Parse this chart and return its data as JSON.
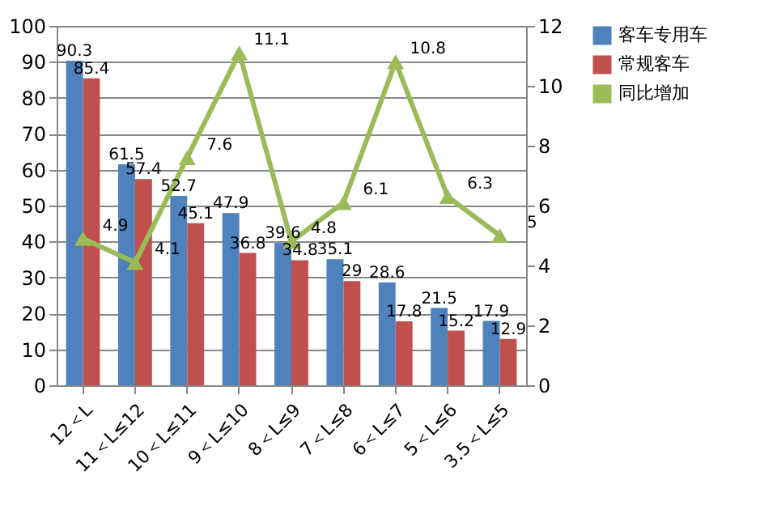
{
  "chart_data": {
    "type": "bar",
    "categories": [
      "12＜L",
      "11＜L≤12",
      "10＜L≤11",
      "9＜L≤10",
      "8＜L≤9",
      "7＜L≤8",
      "6＜L≤7",
      "5＜L≤6",
      "3.5＜L≤5"
    ],
    "series": [
      {
        "name": "客车专用车",
        "color": "#4f81bd",
        "values": [
          90.3,
          61.5,
          52.7,
          47.9,
          39.6,
          35.1,
          28.6,
          21.5,
          17.9
        ]
      },
      {
        "name": "常规客车",
        "color": "#c0504d",
        "values": [
          85.4,
          57.4,
          45.1,
          36.8,
          34.8,
          29,
          17.8,
          15.2,
          12.9
        ]
      },
      {
        "name": "同比增加",
        "color": "#9bbb59",
        "type": "line",
        "axis": "y2",
        "marker": "triangle",
        "values": [
          4.9,
          4.1,
          7.6,
          11.1,
          4.8,
          6.1,
          10.8,
          6.3,
          5
        ]
      }
    ],
    "ylim": [
      0,
      100
    ],
    "yticks": [
      0,
      10,
      20,
      30,
      40,
      50,
      60,
      70,
      80,
      90,
      100
    ],
    "y2lim": [
      0,
      12
    ],
    "y2ticks": [
      0,
      2,
      4,
      6,
      8,
      10,
      12
    ],
    "grid": "y",
    "legend": "right",
    "data_labels": true
  }
}
